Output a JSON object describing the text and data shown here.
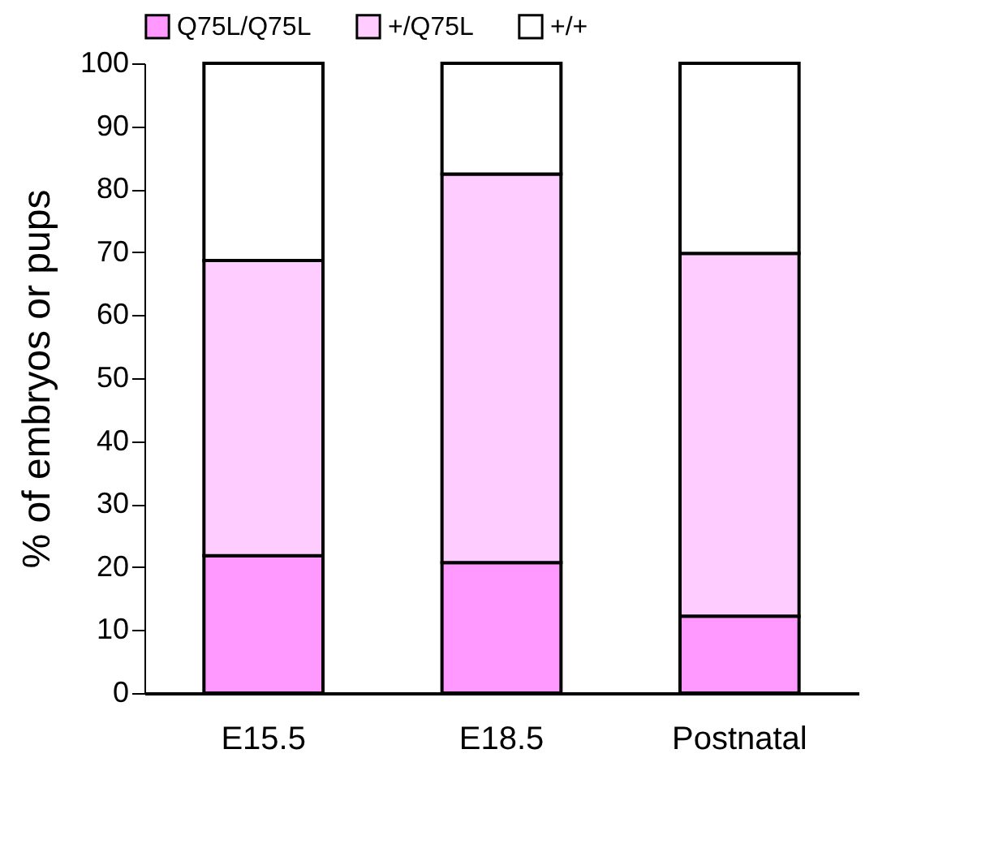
{
  "chart_data": {
    "type": "bar",
    "ylabel": "% of embryos or pups",
    "categories": [
      "E15.5",
      "E18.5",
      "Postnatal"
    ],
    "stacked": true,
    "ylim": [
      0,
      100
    ],
    "yticks": [
      0,
      10,
      20,
      30,
      40,
      50,
      60,
      70,
      80,
      90,
      100
    ],
    "grid": false,
    "legend": "top",
    "series": [
      {
        "name": "Q75L/Q75L",
        "color": "#ff99ff",
        "values": [
          21.8,
          20.7,
          12.2
        ]
      },
      {
        "name": "+/Q75L",
        "color": "#ffccff",
        "values": [
          46.9,
          61.7,
          57.6
        ]
      },
      {
        "name": "+/+",
        "color": "#ffffff",
        "values": [
          31.3,
          17.6,
          30.2
        ]
      }
    ]
  }
}
